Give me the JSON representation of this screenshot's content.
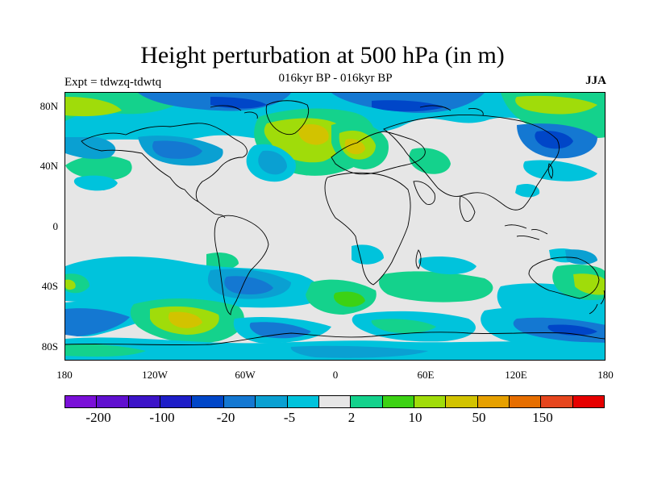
{
  "title": "Height perturbation at 500 hPa (in m)",
  "subtitle": "016kyr BP - 016kyr BP",
  "experiment_label": "Expt = tdwzq-tdwtq",
  "season": "JJA",
  "map": {
    "projection": "cylindrical-equidistant",
    "lat_ticks": [
      "80N",
      "40N",
      "0",
      "40S",
      "80S"
    ],
    "lon_ticks": [
      "180",
      "120W",
      "60W",
      "0",
      "60E",
      "120E",
      "180"
    ],
    "background_color": "#e6e6e6",
    "coastline_color": "#000000"
  },
  "colorbar": {
    "colors": [
      "#7a10d8",
      "#6010d0",
      "#3c14c8",
      "#1e1ec8",
      "#0046c8",
      "#1478d2",
      "#0aa0d2",
      "#00c3dc",
      "#e6e6e6",
      "#14d28c",
      "#3cd214",
      "#a0dc0a",
      "#d2c300",
      "#e6a000",
      "#e66e00",
      "#e6461e",
      "#e60000"
    ],
    "labels": [
      "-200",
      "-100",
      "-20",
      "-5",
      "2",
      "10",
      "50",
      "150"
    ]
  }
}
